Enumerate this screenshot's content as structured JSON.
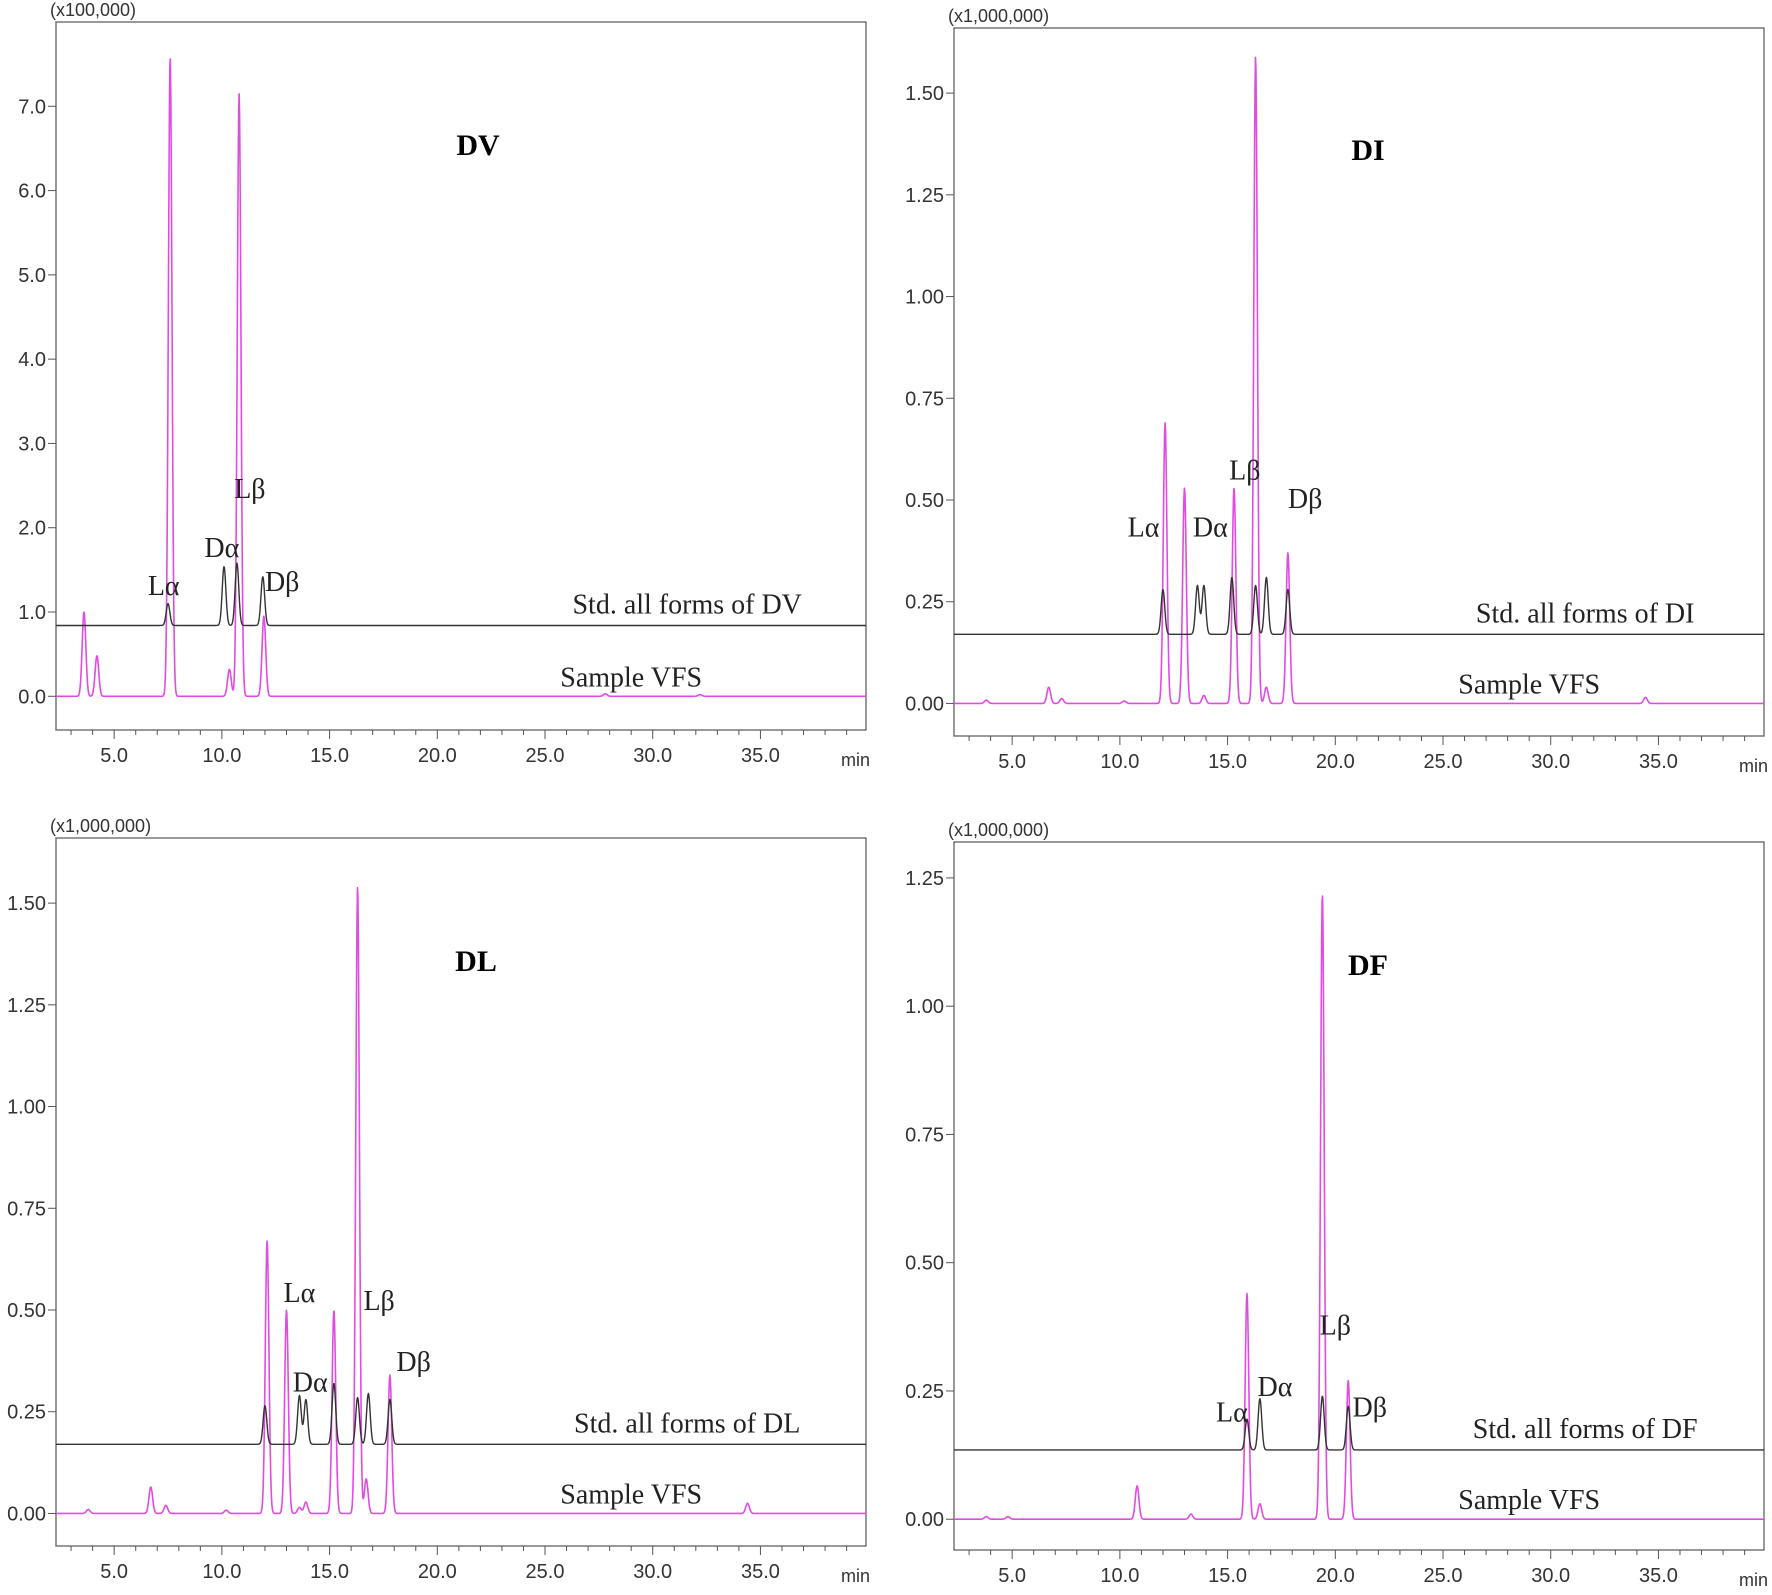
{
  "colors": {
    "sample": "#e24be2",
    "standard": "#333333",
    "frame": "#555555"
  },
  "chart_data": [
    {
      "type": "line",
      "title": "DV",
      "scale_label": "(x100,000)",
      "x_unit": "min",
      "xlim": [
        2.3,
        39.9
      ],
      "ylim": [
        -0.4,
        8.0
      ],
      "x_ticks": [
        "5.0",
        "10.0",
        "15.0",
        "20.0",
        "25.0",
        "30.0",
        "35.0"
      ],
      "y_ticks": [
        "0.0",
        "1.0",
        "2.0",
        "3.0",
        "4.0",
        "5.0",
        "6.0",
        "7.0"
      ],
      "standard": {
        "name": "Std. all forms of DV",
        "baseline": 0.84,
        "peaks": [
          [
            7.5,
            0.26
          ],
          [
            10.1,
            0.7
          ],
          [
            10.7,
            0.74
          ],
          [
            11.9,
            0.58
          ]
        ]
      },
      "sample": {
        "name": "Sample VFS",
        "baseline": 0.0,
        "peaks": [
          [
            3.6,
            1.0
          ],
          [
            4.2,
            0.48
          ],
          [
            7.6,
            7.58
          ],
          [
            10.35,
            0.32
          ],
          [
            10.8,
            7.15
          ],
          [
            11.95,
            0.95
          ],
          [
            27.8,
            0.03
          ],
          [
            32.2,
            0.02
          ]
        ]
      },
      "peak_labels": [
        {
          "text": "Lα",
          "x": 7.3,
          "y": 1.2
        },
        {
          "text": "Dα",
          "x": 10.0,
          "y": 1.65
        },
        {
          "text": "Lβ",
          "x": 11.3,
          "y": 2.35
        },
        {
          "text": "Dβ",
          "x": 12.8,
          "y": 1.25
        }
      ]
    },
    {
      "type": "line",
      "title": "DI",
      "scale_label": "(x1,000,000)",
      "x_unit": "min",
      "xlim": [
        2.3,
        39.9
      ],
      "ylim": [
        -0.08,
        1.66
      ],
      "x_ticks": [
        "5.0",
        "10.0",
        "15.0",
        "20.0",
        "25.0",
        "30.0",
        "35.0"
      ],
      "y_ticks": [
        "0.00",
        "0.25",
        "0.50",
        "0.75",
        "1.00",
        "1.25",
        "1.50"
      ],
      "standard": {
        "name": "Std. all forms of DI",
        "baseline": 0.17,
        "peaks": [
          [
            12.0,
            0.11
          ],
          [
            13.6,
            0.12
          ],
          [
            13.9,
            0.12
          ],
          [
            15.2,
            0.14
          ],
          [
            16.3,
            0.12
          ],
          [
            16.8,
            0.14
          ],
          [
            17.8,
            0.11
          ]
        ]
      },
      "sample": {
        "name": "Sample VFS",
        "baseline": 0.0,
        "peaks": [
          [
            3.8,
            0.008
          ],
          [
            6.7,
            0.04
          ],
          [
            7.3,
            0.012
          ],
          [
            10.2,
            0.006
          ],
          [
            12.1,
            0.69
          ],
          [
            13.0,
            0.53
          ],
          [
            13.9,
            0.02
          ],
          [
            15.3,
            0.53
          ],
          [
            16.3,
            1.59
          ],
          [
            16.8,
            0.04
          ],
          [
            17.8,
            0.37
          ],
          [
            34.4,
            0.015
          ]
        ]
      },
      "peak_labels": [
        {
          "text": "Lα",
          "x": 11.1,
          "y": 0.41
        },
        {
          "text": "Dα",
          "x": 14.2,
          "y": 0.41
        },
        {
          "text": "Lβ",
          "x": 15.8,
          "y": 0.55
        },
        {
          "text": "Dβ",
          "x": 18.6,
          "y": 0.48
        }
      ]
    },
    {
      "type": "line",
      "title": "DL",
      "scale_label": "(x1,000,000)",
      "x_unit": "min",
      "xlim": [
        2.3,
        39.9
      ],
      "ylim": [
        -0.08,
        1.66
      ],
      "x_ticks": [
        "5.0",
        "10.0",
        "15.0",
        "20.0",
        "25.0",
        "30.0",
        "35.0"
      ],
      "y_ticks": [
        "0.00",
        "0.25",
        "0.50",
        "0.75",
        "1.00",
        "1.25",
        "1.50"
      ],
      "standard": {
        "name": "Std. all forms of DL",
        "baseline": 0.17,
        "peaks": [
          [
            12.0,
            0.095
          ],
          [
            13.6,
            0.12
          ],
          [
            13.9,
            0.11
          ],
          [
            15.2,
            0.15
          ],
          [
            16.3,
            0.115
          ],
          [
            16.8,
            0.125
          ],
          [
            17.8,
            0.11
          ]
        ]
      },
      "sample": {
        "name": "Sample VFS",
        "baseline": 0.0,
        "peaks": [
          [
            3.8,
            0.01
          ],
          [
            6.7,
            0.065
          ],
          [
            7.4,
            0.02
          ],
          [
            10.2,
            0.008
          ],
          [
            12.1,
            0.67
          ],
          [
            13.0,
            0.5
          ],
          [
            13.6,
            0.015
          ],
          [
            13.9,
            0.028
          ],
          [
            15.2,
            0.5
          ],
          [
            16.3,
            1.54
          ],
          [
            16.7,
            0.085
          ],
          [
            17.8,
            0.34
          ],
          [
            34.4,
            0.025
          ]
        ]
      },
      "peak_labels": [
        {
          "text": "Lα",
          "x": 13.6,
          "y": 0.52
        },
        {
          "text": "Dα",
          "x": 14.1,
          "y": 0.3
        },
        {
          "text": "Lβ",
          "x": 17.3,
          "y": 0.5
        },
        {
          "text": "Dβ",
          "x": 18.9,
          "y": 0.35
        }
      ]
    },
    {
      "type": "line",
      "title": "DF",
      "scale_label": "(x1,000,000)",
      "x_unit": "min",
      "xlim": [
        2.3,
        39.9
      ],
      "ylim": [
        -0.06,
        1.32
      ],
      "x_ticks": [
        "5.0",
        "10.0",
        "15.0",
        "20.0",
        "25.0",
        "30.0",
        "35.0"
      ],
      "y_ticks": [
        "0.00",
        "0.25",
        "0.50",
        "0.75",
        "1.00",
        "1.25"
      ],
      "standard": {
        "name": "Std. all forms of DF",
        "baseline": 0.135,
        "peaks": [
          [
            15.9,
            0.06
          ],
          [
            16.5,
            0.1
          ],
          [
            19.4,
            0.105
          ],
          [
            20.6,
            0.085
          ]
        ]
      },
      "sample": {
        "name": "Sample VFS",
        "baseline": 0.0,
        "peaks": [
          [
            3.8,
            0.005
          ],
          [
            4.8,
            0.005
          ],
          [
            10.8,
            0.065
          ],
          [
            13.3,
            0.01
          ],
          [
            15.9,
            0.44
          ],
          [
            16.5,
            0.03
          ],
          [
            19.4,
            1.22
          ],
          [
            20.6,
            0.27
          ]
        ]
      },
      "peak_labels": [
        {
          "text": "Lα",
          "x": 15.2,
          "y": 0.19
        },
        {
          "text": "Dα",
          "x": 17.2,
          "y": 0.24
        },
        {
          "text": "Lβ",
          "x": 20.0,
          "y": 0.36
        },
        {
          "text": "Dβ",
          "x": 21.6,
          "y": 0.2
        }
      ]
    }
  ]
}
